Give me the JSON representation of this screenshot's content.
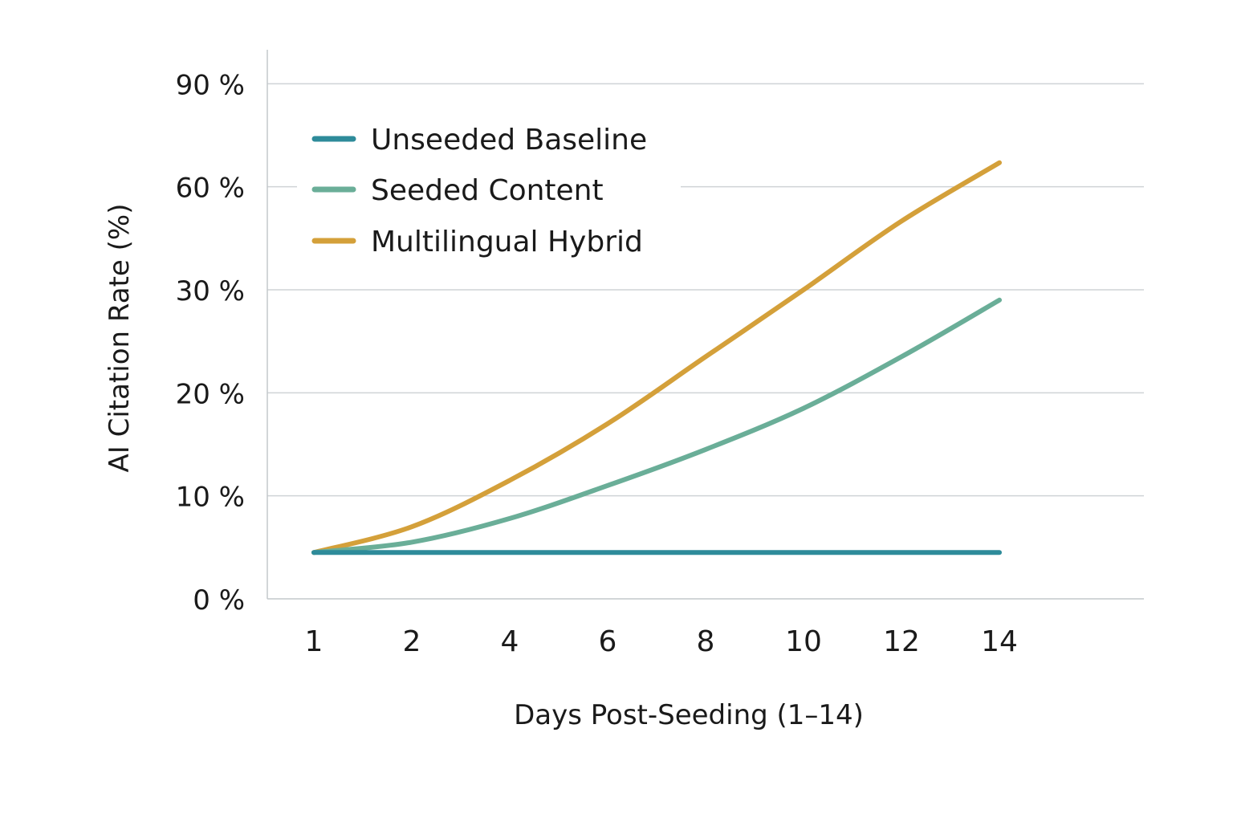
{
  "chart_data": {
    "type": "line",
    "xlabel": "Days Post-Seeding (1–14)",
    "ylabel": "AI Citation Rate (%)",
    "x_ticks": [
      1,
      2,
      4,
      6,
      8,
      10,
      12,
      14
    ],
    "y_ticks": [
      {
        "value": 0,
        "label": "0 %"
      },
      {
        "value": 10,
        "label": "10 %"
      },
      {
        "value": 20,
        "label": "20 %"
      },
      {
        "value": 30,
        "label": "30 %"
      },
      {
        "value": 60,
        "label": "60 %"
      },
      {
        "value": 90,
        "label": "90 %"
      }
    ],
    "legend_position": "top-left",
    "grid": true,
    "series": [
      {
        "name": "Unseeded Baseline",
        "color": "#2e8b9a",
        "points": [
          [
            1,
            4.5
          ],
          [
            2,
            4.5
          ],
          [
            4,
            4.5
          ],
          [
            6,
            4.5
          ],
          [
            8,
            4.5
          ],
          [
            10,
            4.5
          ],
          [
            12,
            4.5
          ],
          [
            14,
            4.5
          ]
        ]
      },
      {
        "name": "Seeded Content",
        "color": "#6aae98",
        "points": [
          [
            1,
            4.5
          ],
          [
            2,
            5.5
          ],
          [
            4,
            7.8
          ],
          [
            6,
            11
          ],
          [
            8,
            14.5
          ],
          [
            10,
            18.5
          ],
          [
            12,
            23.5
          ],
          [
            14,
            29
          ]
        ]
      },
      {
        "name": "Multilingual Hybrid",
        "color": "#d4a03a",
        "points": [
          [
            1,
            4.5
          ],
          [
            2,
            7
          ],
          [
            4,
            11.5
          ],
          [
            6,
            17
          ],
          [
            8,
            23.5
          ],
          [
            10,
            30
          ],
          [
            12,
            50
          ],
          [
            14,
            67
          ]
        ]
      }
    ]
  }
}
